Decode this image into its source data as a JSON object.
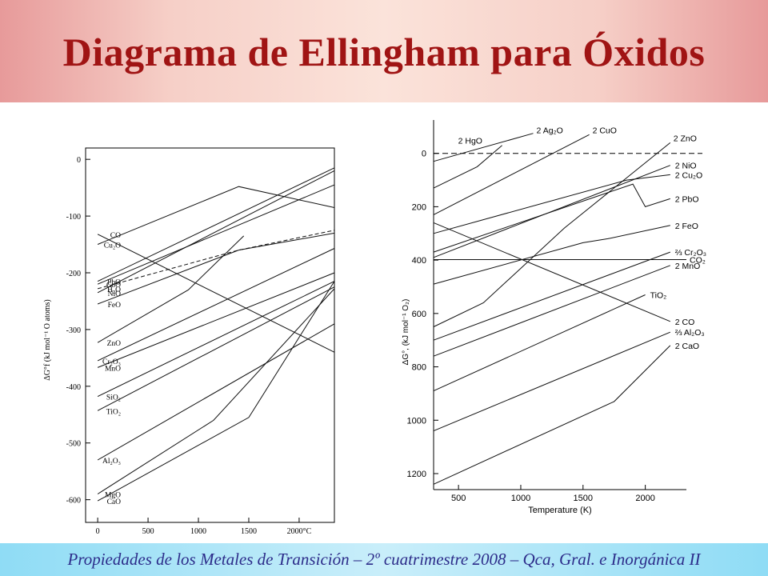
{
  "slide": {
    "title": "Diagrama de Ellingham para Óxidos",
    "footer": "Propiedades de los Metales de Transición – 2º cuatrimestre 2008 – Qca, Gral. e Inorgánica II"
  },
  "chart_data": [
    {
      "type": "line",
      "x_unit": "°C",
      "ylabel": "ΔG°f (kJ mol⁻¹ O atoms)",
      "xlim": [
        -120,
        2350
      ],
      "ylim": [
        -640,
        20
      ],
      "x_ticks": [
        0,
        500,
        1000,
        1500,
        2000
      ],
      "x_tick_labels": [
        "0",
        "500",
        "1000",
        "1500",
        "2000°C"
      ],
      "y_ticks": [
        0,
        -100,
        -200,
        -300,
        -400,
        -500,
        -600
      ],
      "series": [
        {
          "name": "CO",
          "points": [
            [
              0,
              -132
            ],
            [
              2350,
              -340
            ]
          ]
        },
        {
          "name": "Cu₂O",
          "points": [
            [
              0,
              -150
            ],
            [
              1400,
              -48
            ],
            [
              2350,
              -85
            ]
          ]
        },
        {
          "name": "PbO",
          "points": [
            [
              0,
              -215
            ],
            [
              2350,
              -15
            ]
          ]
        },
        {
          "name": "CoO",
          "points": [
            [
              0,
              -220
            ],
            [
              2350,
              -45
            ]
          ]
        },
        {
          "name": "NiO",
          "points": [
            [
              0,
              -235
            ],
            [
              2350,
              -20
            ]
          ]
        },
        {
          "name": "FeO",
          "points": [
            [
              0,
              -255
            ],
            [
              1400,
              -160
            ],
            [
              2350,
              -130
            ]
          ]
        },
        {
          "name": "H₂O",
          "points": [
            [
              0,
              -228
            ],
            [
              1400,
              -160
            ],
            [
              2350,
              -125
            ]
          ],
          "dashed": true
        },
        {
          "name": "ZnO",
          "points": [
            [
              0,
              -323
            ],
            [
              900,
              -230
            ],
            [
              1450,
              -135
            ]
          ]
        },
        {
          "name": "Cr₂O₃",
          "points": [
            [
              0,
              -355
            ],
            [
              2350,
              -157
            ]
          ]
        },
        {
          "name": "MnO",
          "points": [
            [
              0,
              -367
            ],
            [
              2350,
              -200
            ]
          ]
        },
        {
          "name": "SiO₂",
          "points": [
            [
              0,
              -418
            ],
            [
              2350,
              -215
            ]
          ]
        },
        {
          "name": "TiO₂",
          "points": [
            [
              0,
              -443
            ],
            [
              2350,
              -225
            ]
          ]
        },
        {
          "name": "Al₂O₃",
          "points": [
            [
              0,
              -530
            ],
            [
              2350,
              -290
            ]
          ]
        },
        {
          "name": "MgO",
          "points": [
            [
              0,
              -590
            ],
            [
              1150,
              -460
            ],
            [
              2350,
              -228
            ]
          ]
        },
        {
          "name": "CaO",
          "points": [
            [
              0,
              -602
            ],
            [
              1500,
              -455
            ],
            [
              2350,
              -215
            ]
          ]
        }
      ]
    },
    {
      "type": "line",
      "xlabel": "Temperature (K)",
      "ylabel": "ΔG°, (kJ mol⁻¹ O₂)",
      "xlim": [
        300,
        2330
      ],
      "ylim": [
        -1260,
        125
      ],
      "y_inverted_labels": true,
      "x_ticks": [
        500,
        1000,
        1500,
        2000
      ],
      "y_ticks": [
        0,
        -200,
        -400,
        -600,
        -800,
        -1000,
        -1200
      ],
      "y_tick_labels": [
        "0",
        "200",
        "400",
        "600",
        "800",
        "1000",
        "1200"
      ],
      "series": [
        {
          "name": "2 Ag₂O",
          "points": [
            [
              300,
              -30
            ],
            [
              1100,
              75
            ]
          ]
        },
        {
          "name": "2 HgO",
          "points": [
            [
              300,
              -130
            ],
            [
              650,
              -50
            ],
            [
              850,
              30
            ]
          ]
        },
        {
          "name": "2 CuO",
          "points": [
            [
              300,
              -230
            ],
            [
              1550,
              70
            ]
          ]
        },
        {
          "name": "2 ZnO",
          "points": [
            [
              300,
              -650
            ],
            [
              700,
              -560
            ],
            [
              1350,
              -280
            ],
            [
              2200,
              40
            ]
          ]
        },
        {
          "name": "2 NiO",
          "points": [
            [
              300,
              -390
            ],
            [
              2200,
              -45
            ]
          ]
        },
        {
          "name": "2 Cu₂O",
          "points": [
            [
              300,
              -300
            ],
            [
              1850,
              -100
            ],
            [
              2200,
              -80
            ]
          ]
        },
        {
          "name": "2 PbO",
          "points": [
            [
              300,
              -370
            ],
            [
              1900,
              -115
            ],
            [
              2000,
              -200
            ],
            [
              2200,
              -170
            ]
          ]
        },
        {
          "name": "2 FeO",
          "points": [
            [
              300,
              -490
            ],
            [
              1500,
              -335
            ],
            [
              1700,
              -320
            ],
            [
              2200,
              -270
            ]
          ]
        },
        {
          "name": "⅔ Cr₂O₃",
          "points": [
            [
              300,
              -700
            ],
            [
              2200,
              -370
            ]
          ]
        },
        {
          "name": "CO₂",
          "points": [
            [
              300,
              -398
            ],
            [
              2330,
              -398
            ]
          ]
        },
        {
          "name": "2 MnO",
          "points": [
            [
              300,
              -760
            ],
            [
              2200,
              -420
            ]
          ]
        },
        {
          "name": "TiO₂",
          "points": [
            [
              300,
              -890
            ],
            [
              2000,
              -530
            ]
          ]
        },
        {
          "name": "2 CO",
          "points": [
            [
              300,
              -260
            ],
            [
              2200,
              -630
            ]
          ]
        },
        {
          "name": "⅔ Al₂O₃",
          "points": [
            [
              300,
              -1040
            ],
            [
              2200,
              -670
            ]
          ]
        },
        {
          "name": "2 CaO",
          "points": [
            [
              300,
              -1240
            ],
            [
              1750,
              -930
            ],
            [
              2200,
              -720
            ]
          ]
        }
      ],
      "reference_line": {
        "y": 0,
        "dashed": true
      }
    }
  ]
}
